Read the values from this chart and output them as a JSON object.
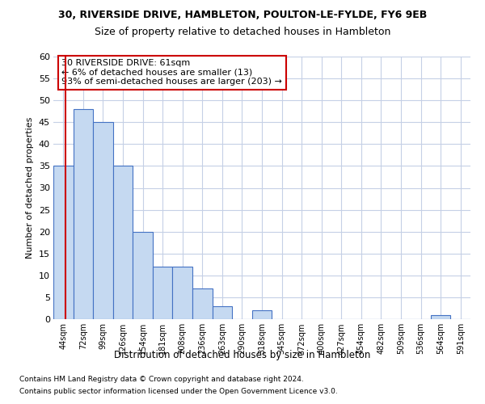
{
  "title_line1": "30, RIVERSIDE DRIVE, HAMBLETON, POULTON-LE-FYLDE, FY6 9EB",
  "title_line2": "Size of property relative to detached houses in Hambleton",
  "xlabel": "Distribution of detached houses by size in Hambleton",
  "ylabel": "Number of detached properties",
  "categories": [
    "44sqm",
    "72sqm",
    "99sqm",
    "126sqm",
    "154sqm",
    "181sqm",
    "208sqm",
    "236sqm",
    "263sqm",
    "290sqm",
    "318sqm",
    "345sqm",
    "372sqm",
    "400sqm",
    "427sqm",
    "454sqm",
    "482sqm",
    "509sqm",
    "536sqm",
    "564sqm",
    "591sqm"
  ],
  "values": [
    35,
    48,
    45,
    35,
    20,
    12,
    12,
    7,
    3,
    0,
    2,
    0,
    0,
    0,
    0,
    0,
    0,
    0,
    0,
    1,
    0
  ],
  "bar_color": "#c5d9f1",
  "bar_edge_color": "#4472c4",
  "grid_color": "#c5d0e6",
  "background_color": "#ffffff",
  "annotation_title": "30 RIVERSIDE DRIVE: 61sqm",
  "annotation_line1": "← 6% of detached houses are smaller (13)",
  "annotation_line2": "93% of semi-detached houses are larger (203) →",
  "annotation_box_color": "#ffffff",
  "annotation_border_color": "#cc0000",
  "ylim_min": 0,
  "ylim_max": 60,
  "yticks": [
    0,
    5,
    10,
    15,
    20,
    25,
    30,
    35,
    40,
    45,
    50,
    55,
    60
  ],
  "footnote_line1": "Contains HM Land Registry data © Crown copyright and database right 2024.",
  "footnote_line2": "Contains public sector information licensed under the Open Government Licence v3.0."
}
